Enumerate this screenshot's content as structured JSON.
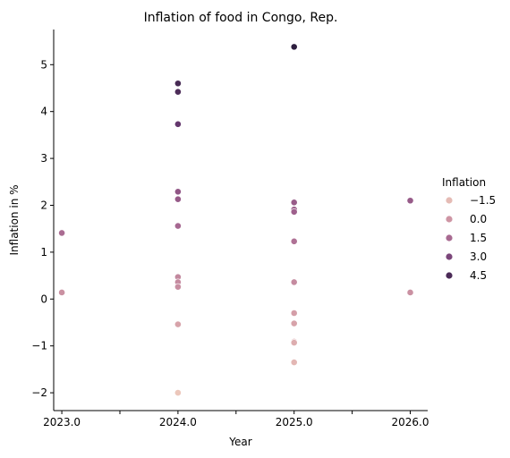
{
  "chart_data": {
    "type": "scatter",
    "title": "Inflation of food in Congo, Rep.",
    "xlabel": "Year",
    "ylabel": "Inflation in %",
    "xlim": [
      2022.93,
      2026.15
    ],
    "ylim": [
      -2.38,
      5.75
    ],
    "x_ticks": [
      2023.0,
      2023.5,
      2024.0,
      2024.5,
      2025.0,
      2025.5,
      2026.0
    ],
    "x_tick_labels": [
      "2023.0",
      "",
      "2024.0",
      "",
      "2025.0",
      "",
      "2026.0"
    ],
    "y_ticks": [
      -2,
      -1,
      0,
      1,
      2,
      3,
      4,
      5
    ],
    "y_tick_labels": [
      "−2",
      "−1",
      "0",
      "1",
      "2",
      "3",
      "4",
      "5"
    ],
    "grid": false,
    "legend": {
      "title": "Inflation",
      "placement": "right",
      "entries": [
        {
          "label": "−1.5",
          "value": -1.5
        },
        {
          "label": "0.0",
          "value": 0.0
        },
        {
          "label": "1.5",
          "value": 1.5
        },
        {
          "label": "3.0",
          "value": 3.0
        },
        {
          "label": "4.5",
          "value": 4.5
        }
      ]
    },
    "color_scale": {
      "low_value": -2.0,
      "high_value": 5.38,
      "stops": [
        "#ecc7bb",
        "#d29aa6",
        "#a3648f",
        "#6b3a72",
        "#2d1e3e"
      ]
    },
    "points": [
      {
        "x": 2023.0,
        "y": 1.41
      },
      {
        "x": 2023.0,
        "y": 0.14
      },
      {
        "x": 2024.0,
        "y": 4.6
      },
      {
        "x": 2024.0,
        "y": 4.42
      },
      {
        "x": 2024.0,
        "y": 3.73
      },
      {
        "x": 2024.0,
        "y": 2.29
      },
      {
        "x": 2024.0,
        "y": 2.13
      },
      {
        "x": 2024.0,
        "y": 1.56
      },
      {
        "x": 2024.0,
        "y": 0.47
      },
      {
        "x": 2024.0,
        "y": 0.36
      },
      {
        "x": 2024.0,
        "y": 0.26
      },
      {
        "x": 2024.0,
        "y": -0.54
      },
      {
        "x": 2024.0,
        "y": -2.0
      },
      {
        "x": 2025.0,
        "y": 5.38
      },
      {
        "x": 2025.0,
        "y": 2.06
      },
      {
        "x": 2025.0,
        "y": 1.91
      },
      {
        "x": 2025.0,
        "y": 1.86
      },
      {
        "x": 2025.0,
        "y": 1.23
      },
      {
        "x": 2025.0,
        "y": 0.36
      },
      {
        "x": 2025.0,
        "y": -0.3
      },
      {
        "x": 2025.0,
        "y": -0.52
      },
      {
        "x": 2025.0,
        "y": -0.91
      },
      {
        "x": 2025.0,
        "y": -0.93
      },
      {
        "x": 2025.0,
        "y": -1.35
      },
      {
        "x": 2026.0,
        "y": 2.1
      },
      {
        "x": 2026.0,
        "y": 0.14
      }
    ]
  }
}
